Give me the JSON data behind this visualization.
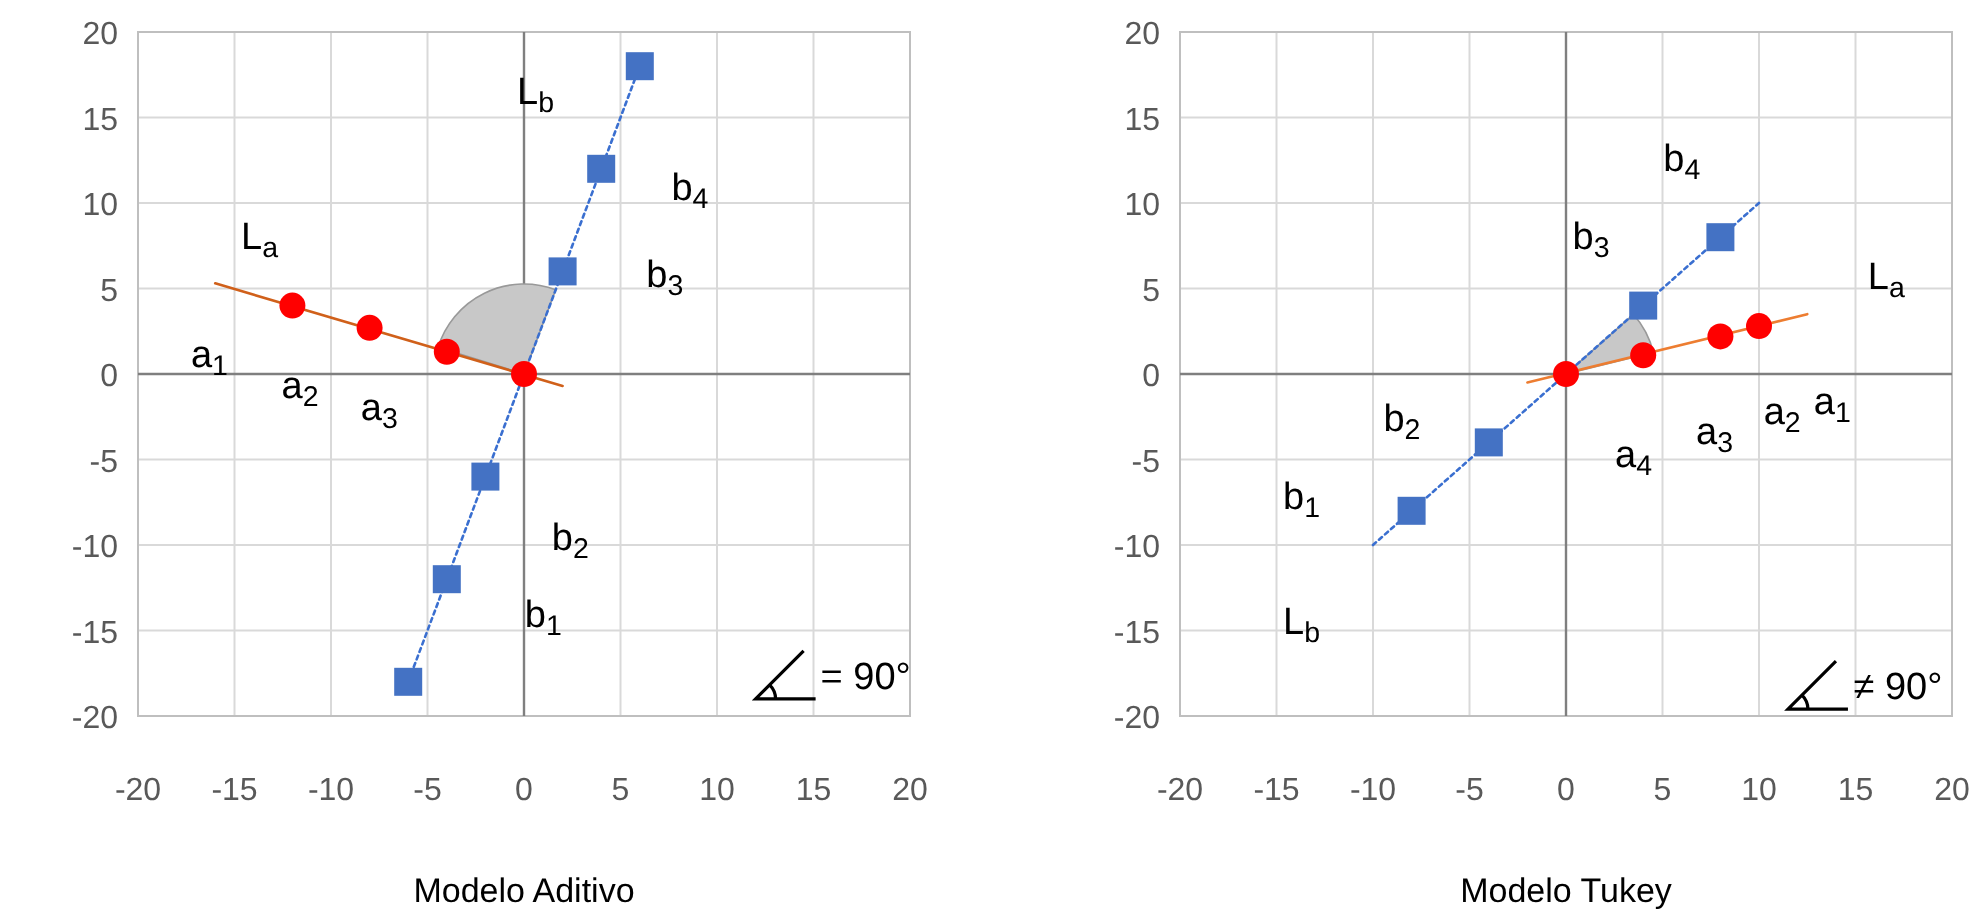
{
  "chart_data": [
    {
      "type": "scatter",
      "xlabel": "Modelo  Aditivo",
      "xlim": [
        -20,
        20
      ],
      "ylim": [
        -20,
        20
      ],
      "xticks": [
        -20,
        -15,
        -10,
        -5,
        0,
        5,
        10,
        15,
        20
      ],
      "yticks": [
        -20,
        -15,
        -10,
        -5,
        0,
        5,
        10,
        15,
        20
      ],
      "grid": true,
      "series": [
        {
          "type": "line",
          "color": "#d0601a",
          "x": [
            -16,
            2
          ],
          "values": [
            5.3,
            -0.7
          ],
          "line_style": "solid"
        },
        {
          "type": "line",
          "color": "#3a6fd0",
          "x": [
            -6,
            6
          ],
          "values": [
            -18,
            18
          ],
          "line_style": "dotted"
        },
        {
          "color": "#ff0000",
          "x": [
            -12,
            -8,
            -4,
            0
          ],
          "values": [
            4,
            2.7,
            1.3,
            0
          ],
          "marker": "circle"
        },
        {
          "color": "#4472c4",
          "x": [
            -6,
            -4,
            -2,
            2,
            4,
            6
          ],
          "values": [
            -18,
            -12,
            -6,
            6,
            12,
            18
          ],
          "marker": "square"
        }
      ],
      "annotations": [
        "L$_{a}$",
        "L$_{b}$",
        "a$_{1}$",
        "a$_{2}$",
        "a$_{3}$",
        "b$_{1}$",
        "b$_{2}$",
        "b$_{3}$",
        "b$_{4}$",
        "= 90°"
      ]
    },
    {
      "type": "scatter",
      "xlabel": "Modelo Tukey",
      "xlim": [
        -20,
        20
      ],
      "ylim": [
        -20,
        20
      ],
      "xticks": [
        -20,
        -15,
        -10,
        -5,
        0,
        5,
        10,
        15,
        20
      ],
      "yticks": [
        -20,
        -15,
        -10,
        -5,
        0,
        5,
        10,
        15,
        20
      ],
      "grid": true,
      "series": [
        {
          "type": "line",
          "color": "#ed7d31",
          "x": [
            -2,
            12.5
          ],
          "values": [
            -0.5,
            3.5
          ],
          "line_style": "solid"
        },
        {
          "type": "line",
          "color": "#3a6fd0",
          "x": [
            -10,
            10
          ],
          "values": [
            -10,
            10
          ],
          "line_style": "dotted"
        },
        {
          "color": "#ff0000",
          "x": [
            0,
            4,
            8,
            10
          ],
          "values": [
            0,
            1.1,
            2.2,
            2.8
          ],
          "marker": "circle"
        },
        {
          "color": "#4472c4",
          "x": [
            -8,
            -4,
            4,
            8
          ],
          "values": [
            -8,
            -4,
            4,
            8
          ],
          "marker": "square"
        }
      ],
      "annotations": [
        "L$_{a}$",
        "L$_{b}$",
        "a$_{1}$",
        "a$_{2}$",
        "a$_{3}$",
        "a$_{4}$",
        "b$_{1}$",
        "b$_{2}$",
        "b$_{3}$",
        "b$_{4}$",
        "≠ 90°"
      ]
    }
  ]
}
